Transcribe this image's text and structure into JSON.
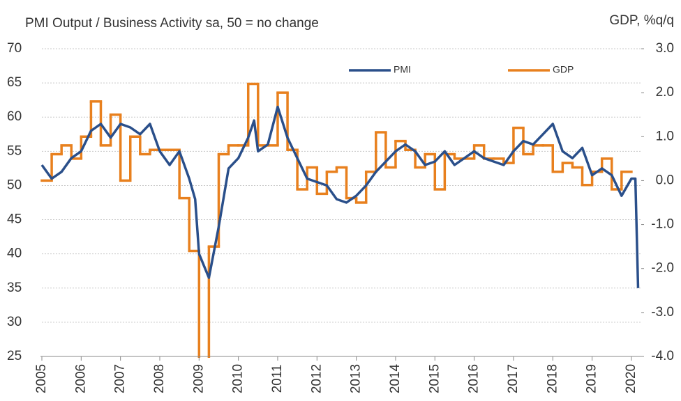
{
  "chart_data": {
    "type": "line",
    "title": "PMI Output / Business Activity sa, 50 = no change",
    "y2_label": "GDP, %q/q",
    "xlim": [
      2005,
      2020.25
    ],
    "xticks": [
      2005,
      2006,
      2007,
      2008,
      2009,
      2010,
      2011,
      2012,
      2013,
      2014,
      2015,
      2016,
      2017,
      2018,
      2019,
      2020
    ],
    "ylim": [
      25,
      70
    ],
    "yticks": [
      25,
      30,
      35,
      40,
      45,
      50,
      55,
      60,
      65,
      70
    ],
    "y2lim": [
      -4,
      3
    ],
    "y2ticks": [
      {
        "value": -4,
        "label": "-4.0"
      },
      {
        "value": -3,
        "label": "-3.0"
      },
      {
        "value": -2,
        "label": "-2.0"
      },
      {
        "value": -1,
        "label": "-1.0"
      },
      {
        "value": 0,
        "label": "0.0"
      },
      {
        "value": 1,
        "label": "1.0"
      },
      {
        "value": 2,
        "label": "2.0"
      },
      {
        "value": 3,
        "label": "3.0"
      }
    ],
    "grid": true,
    "legend": "top",
    "series": [
      {
        "name": "PMI",
        "color": "#2a4f8a",
        "x": [
          2005,
          2005.25,
          2005.5,
          2005.75,
          2006,
          2006.25,
          2006.5,
          2006.75,
          2007,
          2007.25,
          2007.5,
          2007.75,
          2008,
          2008.25,
          2008.5,
          2008.75,
          2008.9,
          2009,
          2009.25,
          2009.5,
          2009.75,
          2010,
          2010.25,
          2010.4,
          2010.5,
          2010.75,
          2011,
          2011.25,
          2011.5,
          2011.75,
          2012,
          2012.25,
          2012.5,
          2012.75,
          2013,
          2013.25,
          2013.5,
          2013.75,
          2014,
          2014.25,
          2014.5,
          2014.75,
          2015,
          2015.25,
          2015.5,
          2015.75,
          2016,
          2016.25,
          2016.5,
          2016.75,
          2017,
          2017.25,
          2017.5,
          2017.75,
          2018,
          2018.25,
          2018.5,
          2018.75,
          2019,
          2019.25,
          2019.5,
          2019.75,
          2020,
          2020.1,
          2020.17
        ],
        "values": [
          53,
          51,
          52,
          54,
          55,
          58,
          59,
          57,
          59,
          58.5,
          57.5,
          59,
          55,
          53,
          55,
          51,
          48,
          40,
          36.5,
          44,
          52.5,
          54,
          57,
          59.5,
          55,
          56,
          61.5,
          57,
          54,
          51,
          50.5,
          50,
          48,
          47.5,
          48.5,
          50,
          52,
          53.5,
          55,
          56,
          55,
          53,
          53.5,
          55,
          53,
          54,
          55,
          54,
          53.5,
          53,
          55,
          56.5,
          56,
          57.5,
          59,
          55,
          54,
          55.5,
          51.5,
          52.5,
          51.5,
          48.5,
          51,
          51,
          35
        ]
      },
      {
        "name": "GDP",
        "color": "#e8801e",
        "axis": "y2",
        "x": [
          2005,
          2005.25,
          2005.5,
          2005.75,
          2006,
          2006.25,
          2006.5,
          2006.75,
          2007,
          2007.25,
          2007.5,
          2007.75,
          2008,
          2008.25,
          2008.5,
          2008.75,
          2009,
          2009.25,
          2009.5,
          2009.75,
          2010,
          2010.25,
          2010.5,
          2010.75,
          2011,
          2011.25,
          2011.5,
          2011.75,
          2012,
          2012.25,
          2012.5,
          2012.75,
          2013,
          2013.25,
          2013.5,
          2013.75,
          2014,
          2014.25,
          2014.5,
          2014.75,
          2015,
          2015.25,
          2015.5,
          2015.75,
          2016,
          2016.25,
          2016.5,
          2016.75,
          2017,
          2017.25,
          2017.5,
          2017.75,
          2018,
          2018.25,
          2018.5,
          2018.75,
          2019,
          2019.25,
          2019.5,
          2019.75
        ],
        "values": [
          0.0,
          0.6,
          0.8,
          0.5,
          1.0,
          1.8,
          0.8,
          1.5,
          0.0,
          1.0,
          0.6,
          0.7,
          0.7,
          0.7,
          -0.4,
          -1.6,
          -4.5,
          -1.5,
          0.6,
          0.8,
          0.8,
          2.2,
          0.8,
          0.8,
          2.0,
          0.7,
          -0.2,
          0.3,
          -0.3,
          0.2,
          0.3,
          -0.4,
          -0.5,
          0.2,
          1.1,
          0.3,
          0.9,
          0.7,
          0.3,
          0.6,
          -0.2,
          0.6,
          0.5,
          0.5,
          0.8,
          0.5,
          0.5,
          0.4,
          1.2,
          0.6,
          0.8,
          0.8,
          0.2,
          0.4,
          0.3,
          -0.1,
          0.2,
          0.5,
          -0.2,
          0.2
        ]
      }
    ]
  }
}
